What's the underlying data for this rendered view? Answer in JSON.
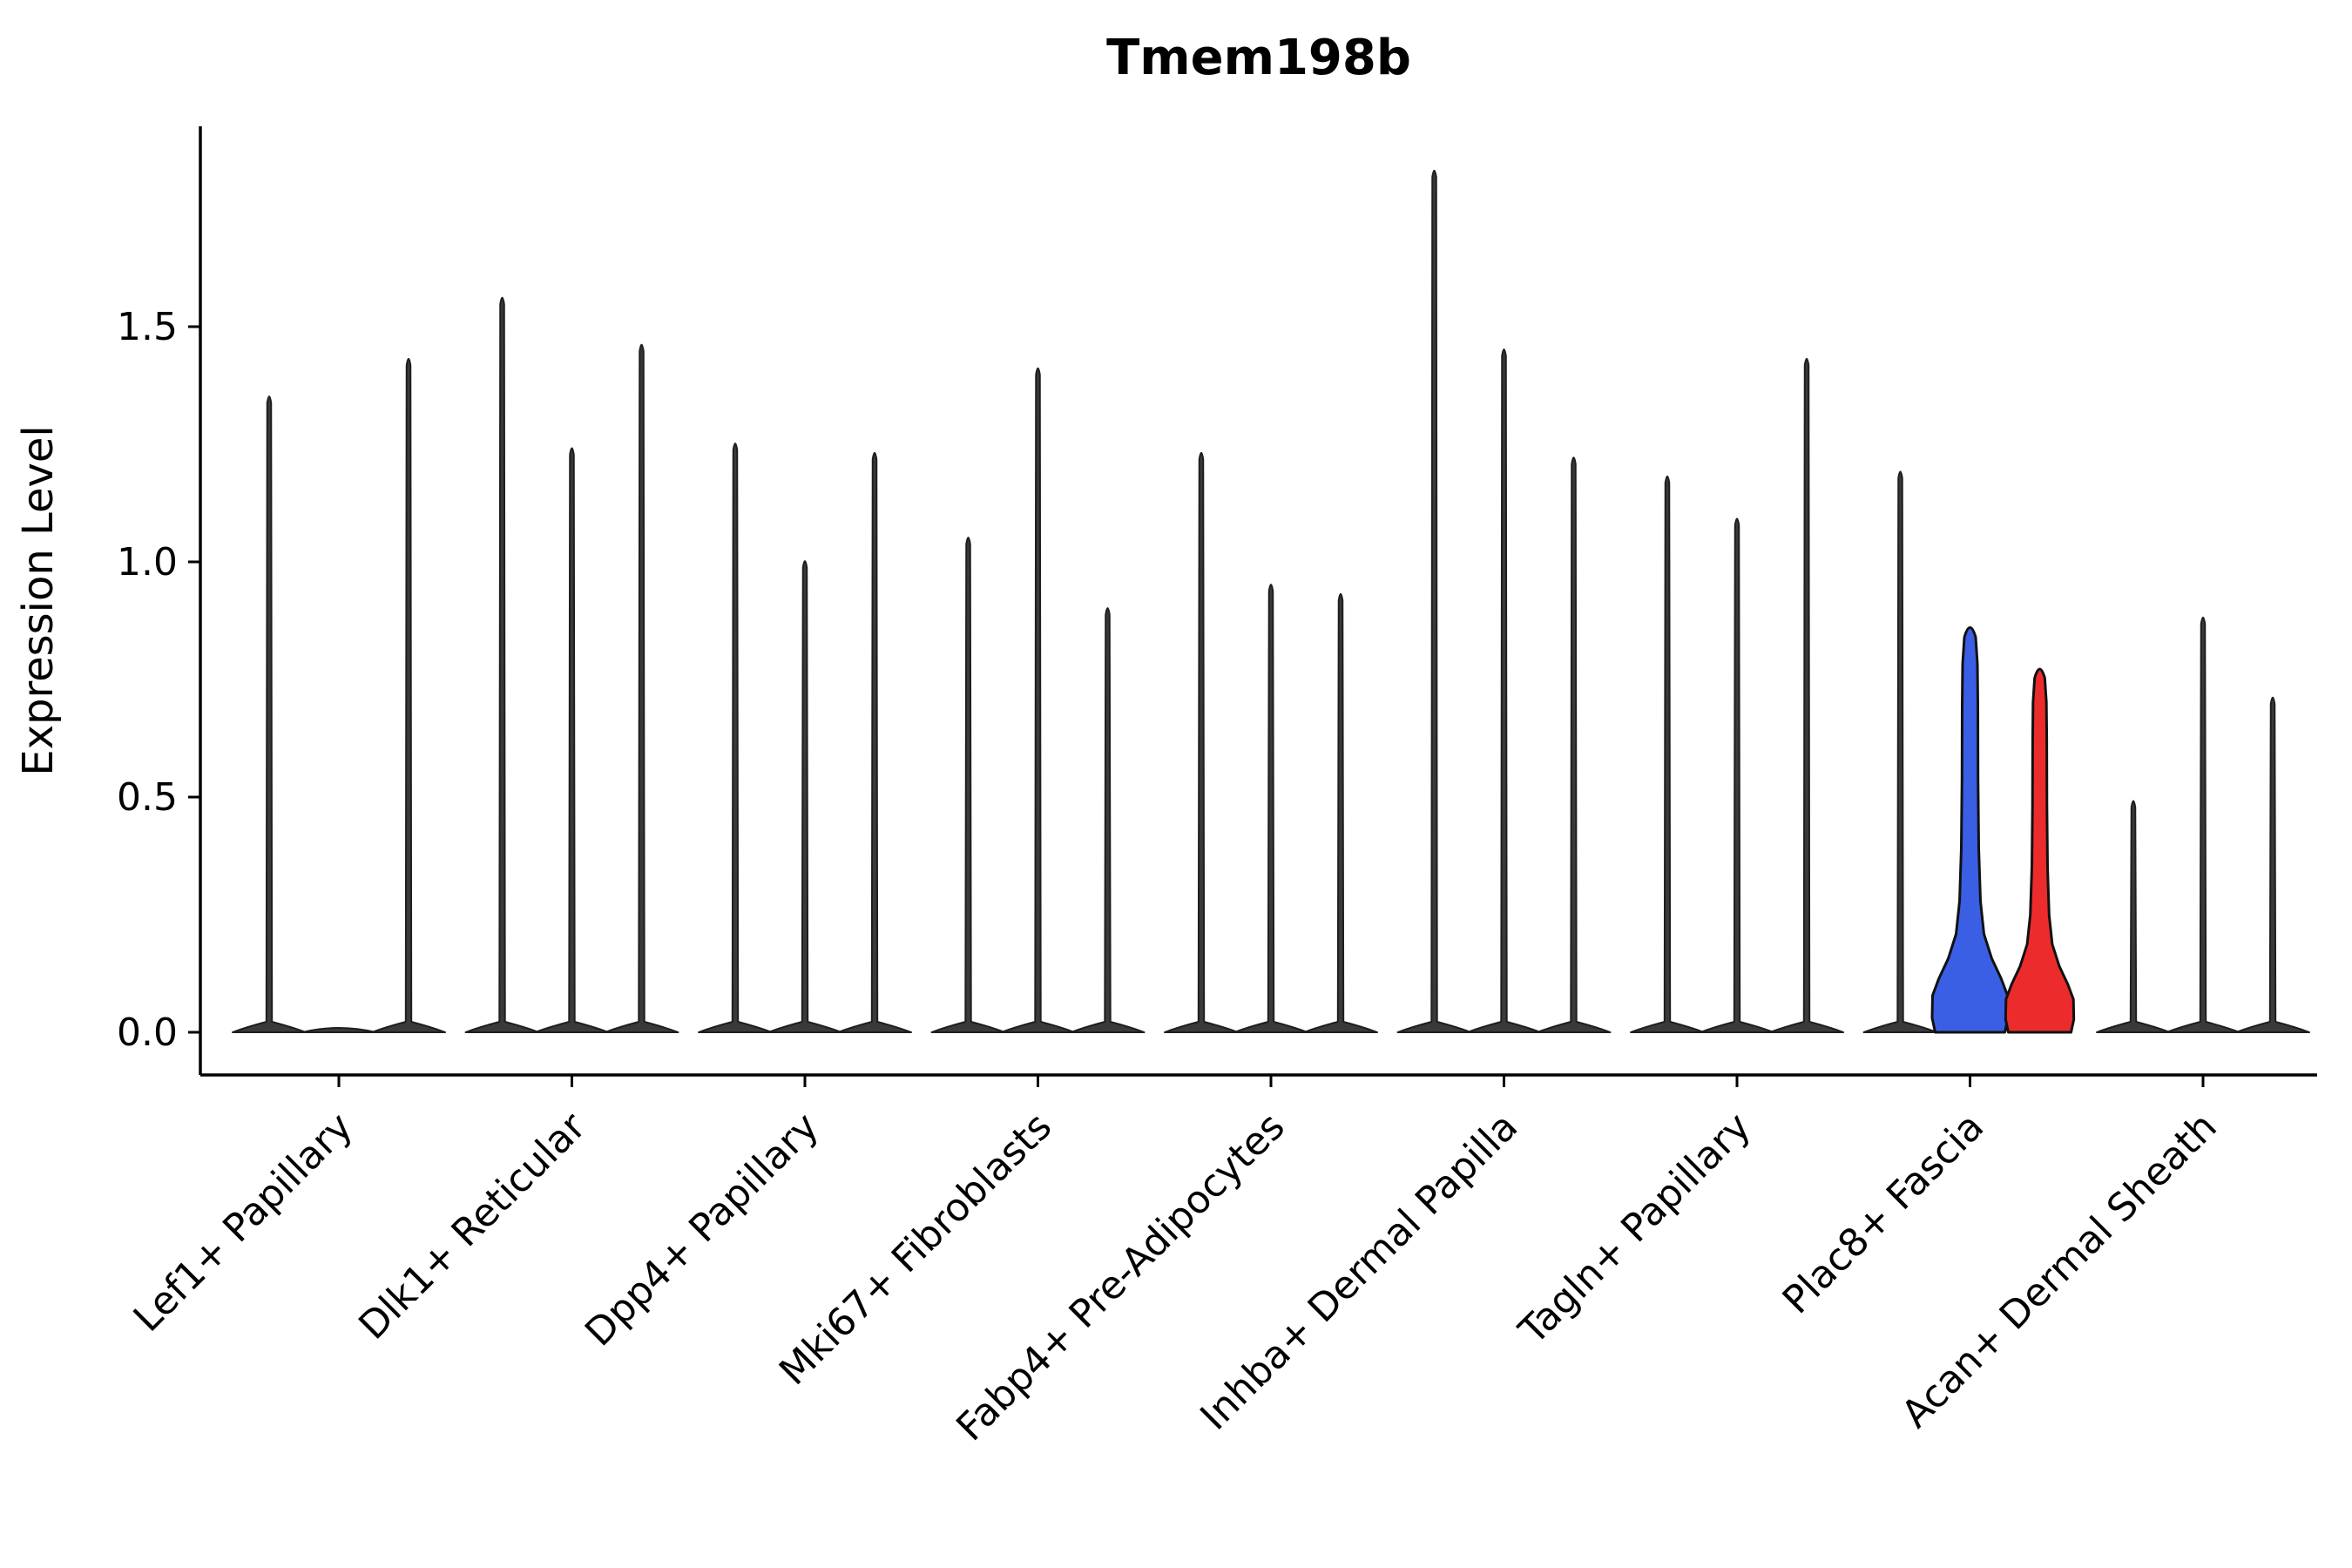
{
  "title": "Tmem198b",
  "chart_data": {
    "type": "violin",
    "title": "Tmem198b",
    "xlabel": "",
    "ylabel": "Expression Level",
    "ytick_labels": [
      "0.0",
      "0.5",
      "1.0",
      "1.5"
    ],
    "ytick_values": [
      0,
      0.5,
      1.0,
      1.5
    ],
    "ylim": [
      0,
      1.93
    ],
    "grid": false,
    "legend": "none",
    "categories": [
      "Lef1+ Papillary",
      "Dlk1+ Reticular",
      "Dpp4+ Papillary",
      "Mki67+ Fibroblasts",
      "Fabp4+ Pre-Adipocytes",
      "Inhba+ Dermal Papilla",
      "Tagln+ Papillary",
      "Plac8+ Fascia",
      "Acan+ Dermal Sheath"
    ],
    "groups": [
      {
        "label": "Lef1+ Papillary",
        "violins": [
          {
            "peak": 1.36,
            "color": "dark"
          },
          {
            "peak": 0.0,
            "color": "dark"
          },
          {
            "peak": 1.44,
            "color": "dark"
          }
        ]
      },
      {
        "label": "Dlk1+ Reticular",
        "violins": [
          {
            "peak": 1.57,
            "color": "dark"
          },
          {
            "peak": 1.25,
            "color": "dark"
          },
          {
            "peak": 1.47,
            "color": "dark"
          }
        ]
      },
      {
        "label": "Dpp4+ Papillary",
        "violins": [
          {
            "peak": 1.26,
            "color": "dark"
          },
          {
            "peak": 1.01,
            "color": "dark"
          },
          {
            "peak": 1.24,
            "color": "dark"
          }
        ]
      },
      {
        "label": "Mki67+ Fibroblasts",
        "violins": [
          {
            "peak": 1.06,
            "color": "dark"
          },
          {
            "peak": 1.42,
            "color": "dark"
          },
          {
            "peak": 0.91,
            "color": "dark"
          }
        ]
      },
      {
        "label": "Fabp4+ Pre-Adipocytes",
        "violins": [
          {
            "peak": 1.24,
            "color": "dark"
          },
          {
            "peak": 0.96,
            "color": "dark"
          },
          {
            "peak": 0.94,
            "color": "dark"
          }
        ]
      },
      {
        "label": "Inhba+ Dermal Papilla",
        "violins": [
          {
            "peak": 1.84,
            "color": "dark"
          },
          {
            "peak": 1.46,
            "color": "dark"
          },
          {
            "peak": 1.23,
            "color": "dark"
          }
        ]
      },
      {
        "label": "Tagln+ Papillary",
        "violins": [
          {
            "peak": 1.19,
            "color": "dark"
          },
          {
            "peak": 1.1,
            "color": "dark"
          },
          {
            "peak": 1.44,
            "color": "dark"
          }
        ]
      },
      {
        "label": "Plac8+ Fascia",
        "violins": [
          {
            "peak": 1.2,
            "color": "dark"
          },
          {
            "peak": 0.87,
            "color": "blue"
          },
          {
            "peak": 0.78,
            "color": "red"
          }
        ]
      },
      {
        "label": "Acan+ Dermal Sheath",
        "violins": [
          {
            "peak": 0.5,
            "color": "dark"
          },
          {
            "peak": 0.89,
            "color": "dark"
          },
          {
            "peak": 0.72,
            "color": "dark"
          }
        ]
      }
    ],
    "colors": {
      "blue": "#3A5FE5",
      "red": "#EC2C2C",
      "dark": "#3A3A3A",
      "dark_stroke": "#1E1E1E",
      "colored_stroke": "#111111",
      "axis": "#000000"
    }
  }
}
